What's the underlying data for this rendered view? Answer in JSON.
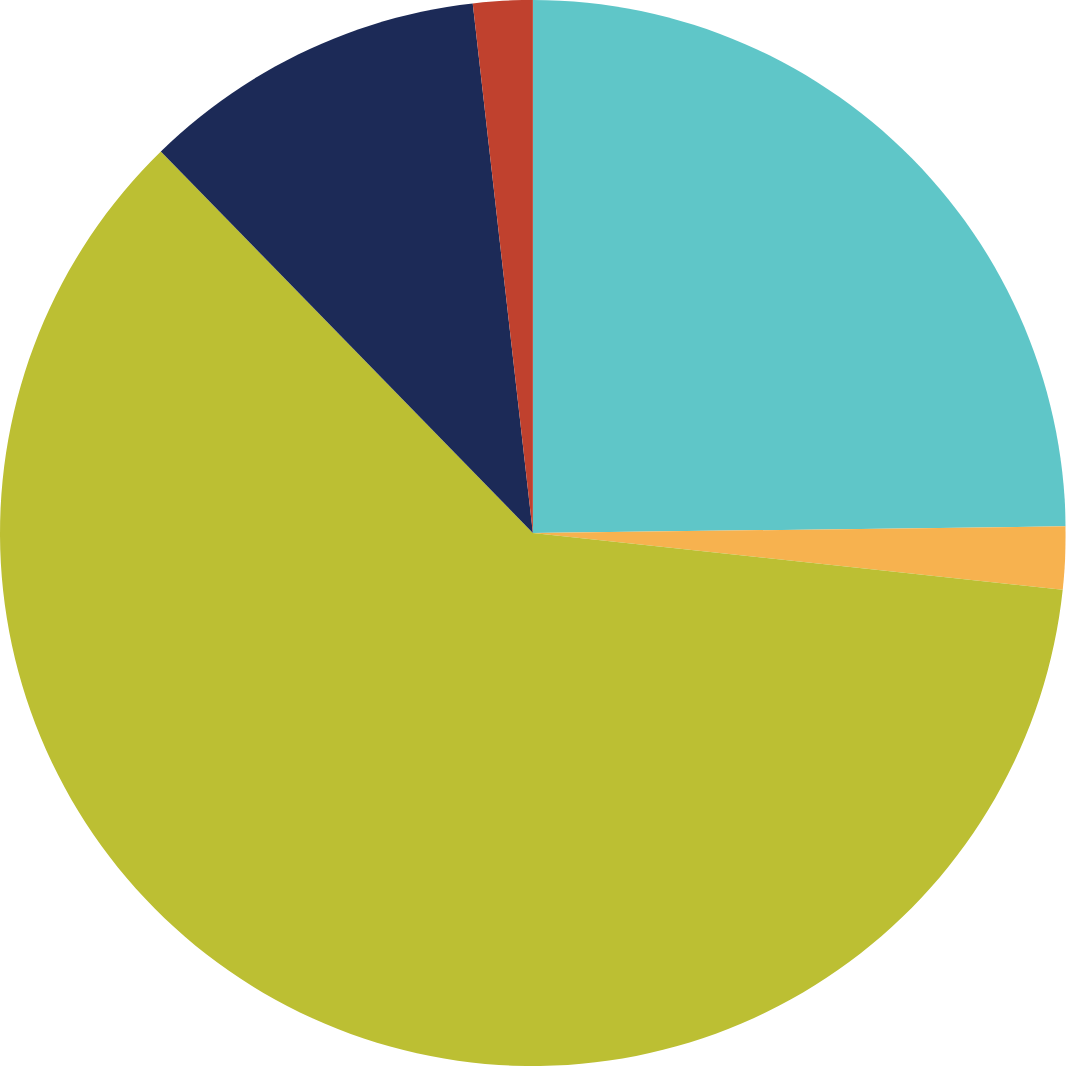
{
  "chart_data": {
    "type": "pie",
    "categories": [
      null,
      null,
      null,
      null,
      null
    ],
    "values": [
      24.8,
      1.9,
      61.0,
      10.5,
      1.8
    ],
    "colors": [
      "#5fc6c8",
      "#f7b24f",
      "#bcbf33",
      "#1c2a57",
      "#c0412e"
    ]
  }
}
